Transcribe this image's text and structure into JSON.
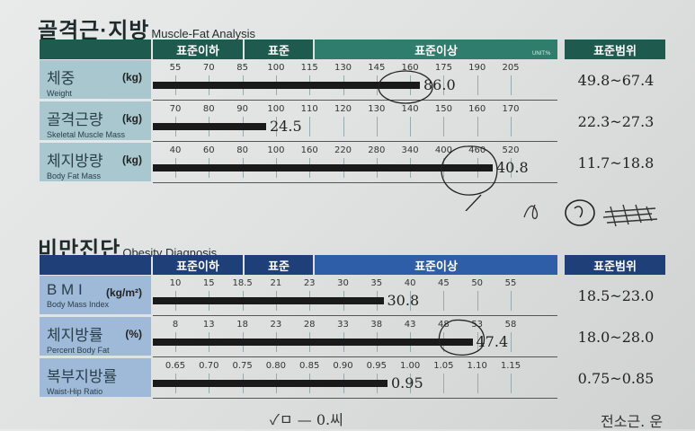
{
  "muscle_fat": {
    "title_ko": "골격근·지방",
    "title_en": "Muscle-Fat Analysis",
    "headers": [
      "표준이하",
      "표준",
      "표준이상",
      "표준범위"
    ],
    "unit_tag": "UNIT:%",
    "rows": [
      {
        "ko": "체중",
        "en": "Weight",
        "unit": "(kg)",
        "ticks": [
          "55",
          "70",
          "85",
          "100",
          "115",
          "130",
          "145",
          "160",
          "175",
          "190",
          "205"
        ],
        "value_text": "86.0",
        "value_fraction": 0.66,
        "range": "49.8~67.4"
      },
      {
        "ko": "골격근량",
        "en": "Skeletal Muscle Mass",
        "unit": "(kg)",
        "ticks": [
          "70",
          "80",
          "90",
          "100",
          "110",
          "120",
          "130",
          "140",
          "150",
          "160",
          "170"
        ],
        "value_text": "24.5",
        "value_fraction": 0.28,
        "range": "22.3~27.3"
      },
      {
        "ko": "체지방량",
        "en": "Body Fat Mass",
        "unit": "(kg)",
        "ticks": [
          "40",
          "60",
          "80",
          "100",
          "160",
          "220",
          "280",
          "340",
          "400",
          "460",
          "520"
        ],
        "value_text": "40.8",
        "value_fraction": 0.84,
        "range": "11.7~18.8"
      }
    ]
  },
  "obesity": {
    "title_ko": "비만진단",
    "title_en": "Obesity Diagnosis",
    "headers": [
      "표준이하",
      "표준",
      "표준이상",
      "표준범위"
    ],
    "rows": [
      {
        "ko": "B M I",
        "en": "Body Mass Index",
        "unit": "(kg/m²)",
        "ticks": [
          "10",
          "15",
          "18.5",
          "21",
          "23",
          "30",
          "35",
          "40",
          "45",
          "50",
          "55"
        ],
        "value_text": "30.8",
        "value_fraction": 0.57,
        "range": "18.5~23.0"
      },
      {
        "ko": "체지방률",
        "en": "Percent Body Fat",
        "unit": "(%)",
        "ticks": [
          "8",
          "13",
          "18",
          "23",
          "28",
          "33",
          "38",
          "43",
          "48",
          "53",
          "58"
        ],
        "value_text": "47.4",
        "value_fraction": 0.79,
        "range": "18.0~28.0"
      },
      {
        "ko": "복부지방률",
        "en": "Waist-Hip Ratio",
        "unit": "",
        "ticks": [
          "0.65",
          "0.70",
          "0.75",
          "0.80",
          "0.85",
          "0.90",
          "0.95",
          "1.00",
          "1.05",
          "1.10",
          "1.15"
        ],
        "value_text": "0.95",
        "value_fraction": 0.58,
        "range": "0.75~0.85"
      }
    ]
  },
  "handwriting": {
    "bottom": "✓ㅁ — 0.씨",
    "bottom_right": "전소근. 운"
  },
  "colors": {
    "mf_header_dark": "#1e5a4e",
    "mf_header_mid": "#2f7d6c",
    "mf_label": "#a8c7cf",
    "ob_header_dark": "#1f3f78",
    "ob_header_mid": "#2f5ea8",
    "ob_label": "#9fb9d8"
  }
}
